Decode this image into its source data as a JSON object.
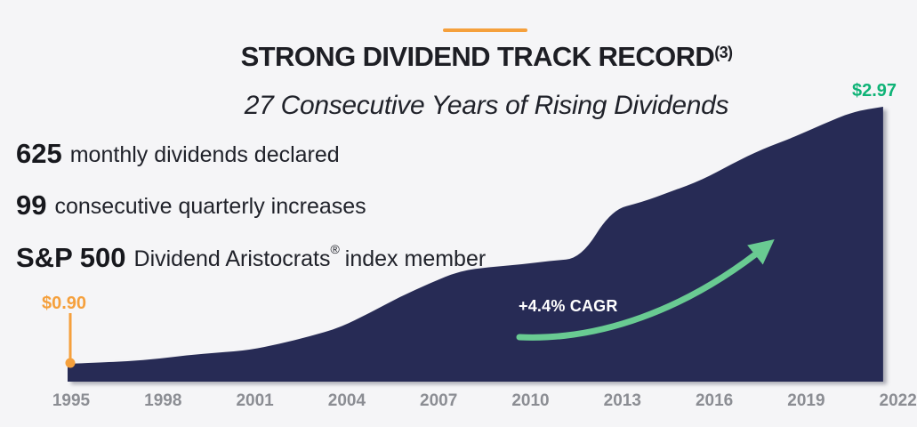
{
  "page": {
    "background": "#f5f5f7"
  },
  "header": {
    "accent_rule_color": "#F5A03C",
    "title": "STRONG DIVIDEND TRACK RECORD",
    "title_superscript": "(3)",
    "subtitle": "27 Consecutive Years of Rising Dividends"
  },
  "stats": [
    {
      "value": "625",
      "label": "monthly dividends declared",
      "sup": "",
      "label2": ""
    },
    {
      "value": "99",
      "label": "consecutive quarterly increases",
      "sup": "",
      "label2": ""
    },
    {
      "value": "S&P 500",
      "label": "Dividend Aristocrats",
      "sup": "®",
      "label2": "index member"
    }
  ],
  "chart_data": {
    "type": "area",
    "title": "STRONG DIVIDEND TRACK RECORD",
    "subtitle": "27 Consecutive Years of Rising Dividends",
    "x": [
      1995,
      1996,
      1997,
      1998,
      1999,
      2000,
      2001,
      2002,
      2003,
      2004,
      2005,
      2006,
      2007,
      2008,
      2009,
      2010,
      2011,
      2012,
      2013,
      2014,
      2015,
      2016,
      2017,
      2018,
      2019,
      2020,
      2021,
      2022
    ],
    "values": [
      0.9,
      0.91,
      0.92,
      0.94,
      0.97,
      0.99,
      1.01,
      1.06,
      1.12,
      1.19,
      1.31,
      1.44,
      1.55,
      1.65,
      1.68,
      1.7,
      1.73,
      1.75,
      2.14,
      2.2,
      2.29,
      2.38,
      2.51,
      2.63,
      2.72,
      2.83,
      2.93,
      2.97
    ],
    "x_tick_labels": [
      "1995",
      "1998",
      "2001",
      "2004",
      "2007",
      "2010",
      "2013",
      "2016",
      "2019",
      "2022"
    ],
    "start_label": "$0.90",
    "end_label": "$2.97",
    "annotation": "+4.4% CAGR",
    "ylim": [
      0.75,
      3.2
    ],
    "grid": false,
    "legend": false,
    "area_color": "#272B55",
    "start_label_color": "#F5A03C",
    "end_label_color": "#0FB377",
    "arrow_color": "#69CB92",
    "tick_color": "#8B8D93"
  }
}
